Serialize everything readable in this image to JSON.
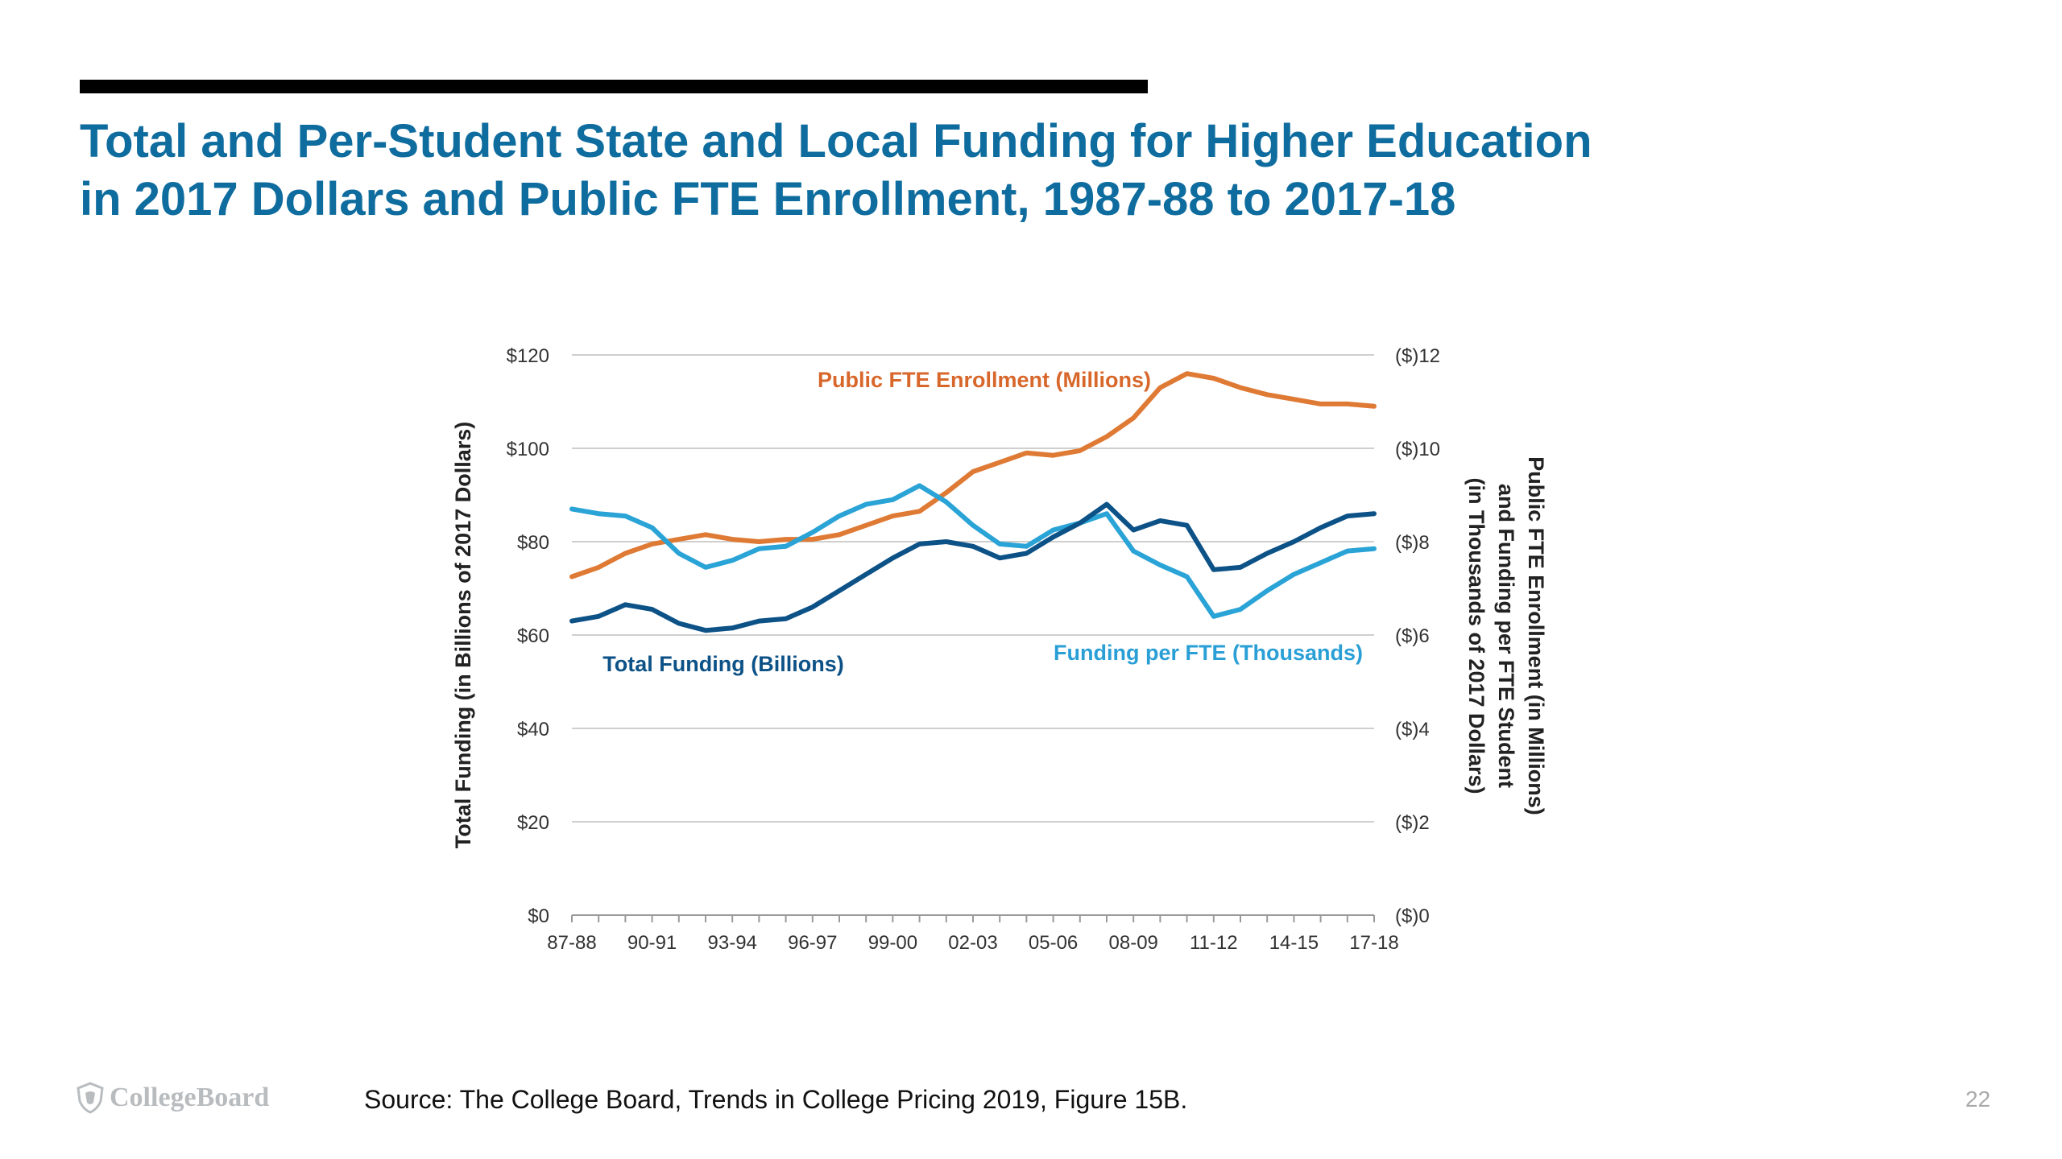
{
  "slide": {
    "title_line1": "Total and Per-Student State and Local Funding for Higher Education",
    "title_line2": "in 2017 Dollars and Public FTE Enrollment, 1987-88 to 2017-18",
    "source": "Source: The College Board, Trends in College Pricing 2019, Figure 15B.",
    "logo_text": "CollegeBoard",
    "page_number": "22"
  },
  "chart_data": {
    "type": "line",
    "ylabel_left": "Total Funding (in Billions of 2017 Dollars)",
    "ylabel_right": [
      "Public FTE Enrollment (in Millions)",
      "and Funding per FTE Student",
      "(in Thousands of 2017 Dollars)"
    ],
    "ylim_left": [
      0,
      120
    ],
    "ylim_right": [
      0,
      12
    ],
    "left_ticks": [
      "$0",
      "$20",
      "$40",
      "$60",
      "$80",
      "$100",
      "$120"
    ],
    "right_ticks": [
      "($)0",
      "($)2",
      "($)4",
      "($)6",
      "($)8",
      "($)10",
      "($)12"
    ],
    "x_tick_labels": [
      "87-88",
      "90-91",
      "93-94",
      "96-97",
      "99-00",
      "02-03",
      "05-06",
      "08-09",
      "11-12",
      "14-15",
      "17-18"
    ],
    "x": [
      "87-88",
      "88-89",
      "89-90",
      "90-91",
      "91-92",
      "92-93",
      "93-94",
      "94-95",
      "95-96",
      "96-97",
      "97-98",
      "98-99",
      "99-00",
      "00-01",
      "01-02",
      "02-03",
      "03-04",
      "04-05",
      "05-06",
      "06-07",
      "07-08",
      "08-09",
      "09-10",
      "10-11",
      "11-12",
      "12-13",
      "13-14",
      "14-15",
      "15-16",
      "16-17",
      "17-18"
    ],
    "grid": true,
    "series": [
      {
        "name": "Total Funding (Billions)",
        "axis": "left",
        "color": "#0d5287",
        "values": [
          63,
          64,
          66.5,
          65.5,
          62.5,
          61,
          61.5,
          63,
          63.5,
          66,
          69.5,
          73,
          76.5,
          79.5,
          80,
          79,
          76.5,
          77.5,
          81,
          84,
          88,
          82.5,
          84.5,
          83.5,
          74,
          74.5,
          77.5,
          80,
          83,
          85.5,
          86
        ]
      },
      {
        "name": "Funding per FTE (Thousands)",
        "axis": "right",
        "color": "#2aa3d6",
        "values": [
          8.7,
          8.6,
          8.55,
          8.3,
          7.75,
          7.45,
          7.6,
          7.85,
          7.9,
          8.2,
          8.55,
          8.8,
          8.9,
          9.2,
          8.85,
          8.35,
          7.95,
          7.9,
          8.25,
          8.4,
          8.6,
          7.8,
          7.5,
          7.25,
          6.4,
          6.55,
          6.95,
          7.3,
          7.55,
          7.8,
          7.85
        ]
      },
      {
        "name": "Public FTE Enrollment (Millions)",
        "axis": "right",
        "color": "#df7a35",
        "values": [
          7.25,
          7.45,
          7.75,
          7.95,
          8.05,
          8.15,
          8.05,
          8.0,
          8.05,
          8.05,
          8.15,
          8.35,
          8.55,
          8.65,
          9.05,
          9.5,
          9.7,
          9.9,
          9.85,
          9.95,
          10.25,
          10.65,
          11.3,
          11.6,
          11.5,
          11.3,
          11.15,
          11.05,
          10.95,
          10.95,
          10.9
        ]
      }
    ],
    "annotations": [
      {
        "text": "Public FTE Enrollment (Millions)",
        "color": "#d8672b"
      },
      {
        "text": "Total Funding (Billions)",
        "color": "#0d5287"
      },
      {
        "text": "Funding per FTE (Thousands)",
        "color": "#2a9fd6"
      }
    ]
  }
}
